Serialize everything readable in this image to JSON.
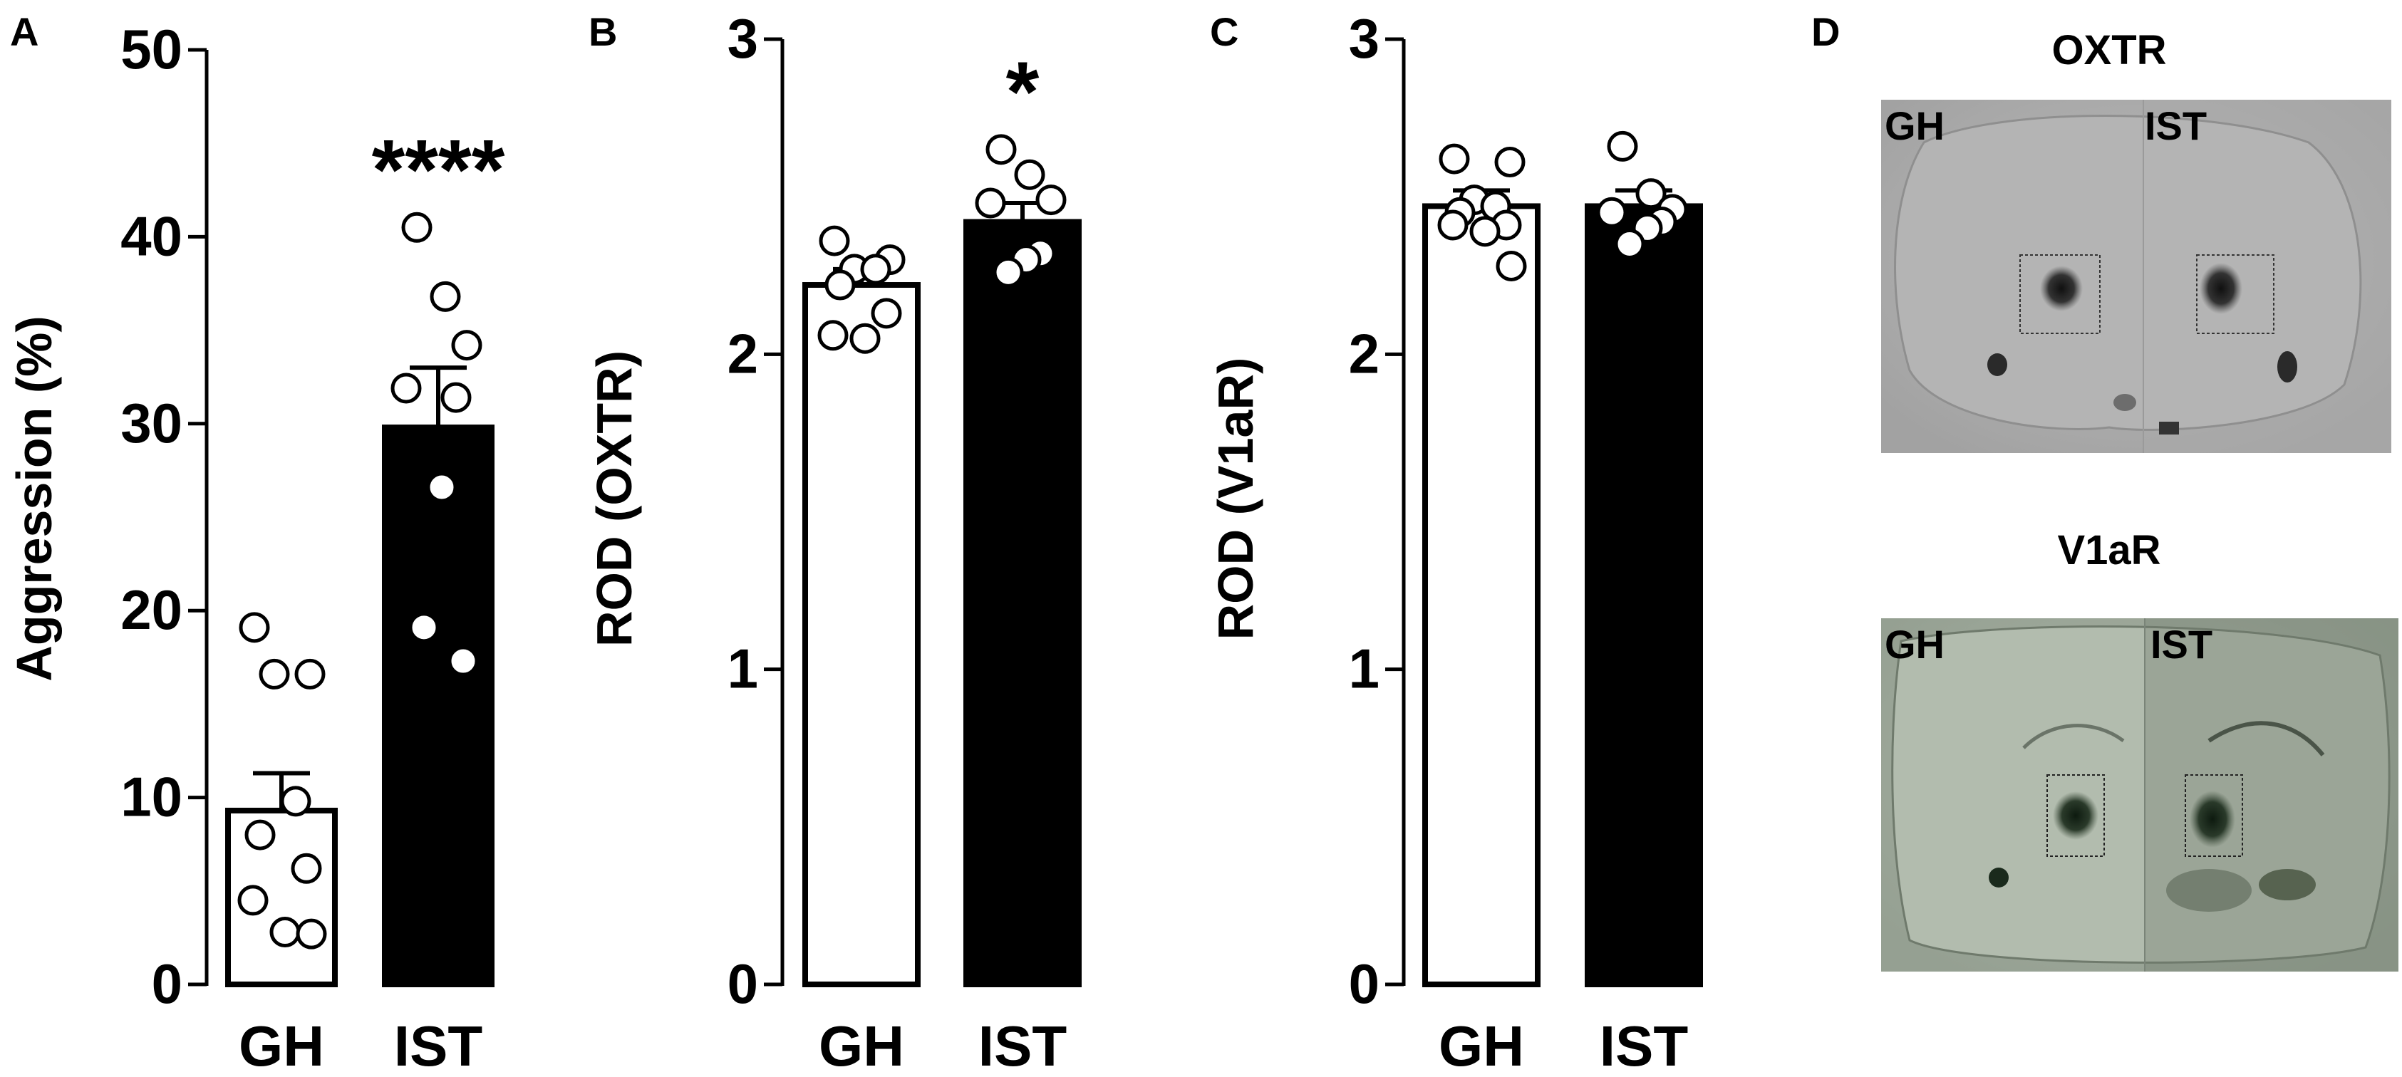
{
  "panels": [
    {
      "letter": "A"
    },
    {
      "letter": "B"
    },
    {
      "letter": "C"
    },
    {
      "letter": "D"
    }
  ],
  "chart_data": [
    {
      "panel": "A",
      "type": "bar",
      "categories": [
        "GH",
        "IST"
      ],
      "values": [
        9.3,
        29.8
      ],
      "errors": [
        2.0,
        3.2
      ],
      "bar_fill": [
        "#ffffff",
        "#000000"
      ],
      "points": [
        [
          19.1,
          16.6,
          16.6,
          9.8,
          8.0,
          6.2,
          4.5,
          2.8,
          2.7
        ],
        [
          40.5,
          36.8,
          34.2,
          31.9,
          31.4,
          26.6,
          19.1,
          17.3
        ]
      ],
      "significance": [
        "",
        "****"
      ],
      "ylabel": "Aggression (%)",
      "ylim": [
        0,
        50
      ],
      "yticks": [
        0,
        10,
        20,
        30,
        40,
        50
      ]
    },
    {
      "panel": "B",
      "type": "bar",
      "categories": [
        "GH",
        "IST"
      ],
      "values": [
        2.22,
        2.42
      ],
      "errors": [
        0.05,
        0.06
      ],
      "bar_fill": [
        "#ffffff",
        "#000000"
      ],
      "points": [
        [
          2.36,
          2.3,
          2.27,
          2.27,
          2.22,
          2.13,
          2.06,
          2.05
        ],
        [
          2.65,
          2.57,
          2.49,
          2.48,
          2.32,
          2.3,
          2.26
        ]
      ],
      "significance": [
        "",
        "*"
      ],
      "ylabel": "ROD (OXTR)",
      "ylim": [
        0,
        3
      ],
      "yticks": [
        0,
        1,
        2,
        3
      ]
    },
    {
      "panel": "C",
      "type": "bar",
      "categories": [
        "GH",
        "IST"
      ],
      "values": [
        2.47,
        2.47
      ],
      "errors": [
        0.05,
        0.05
      ],
      "bar_fill": [
        "#ffffff",
        "#000000"
      ],
      "points": [
        [
          2.62,
          2.61,
          2.49,
          2.47,
          2.45,
          2.41,
          2.41,
          2.39,
          2.28
        ],
        [
          2.66,
          2.51,
          2.46,
          2.45,
          2.42,
          2.4,
          2.35
        ]
      ],
      "significance": [
        "",
        ""
      ],
      "ylabel": "ROD (V1aR)",
      "ylim": [
        0,
        3
      ],
      "yticks": [
        0,
        1,
        2,
        3
      ]
    }
  ],
  "autoradiographs": [
    {
      "title": "OXTR",
      "left_label": "GH",
      "right_label": "IST",
      "tone": "#9a9a9a"
    },
    {
      "title": "V1aR",
      "left_label": "GH",
      "right_label": "IST",
      "tone": "#8f9a8c"
    }
  ]
}
